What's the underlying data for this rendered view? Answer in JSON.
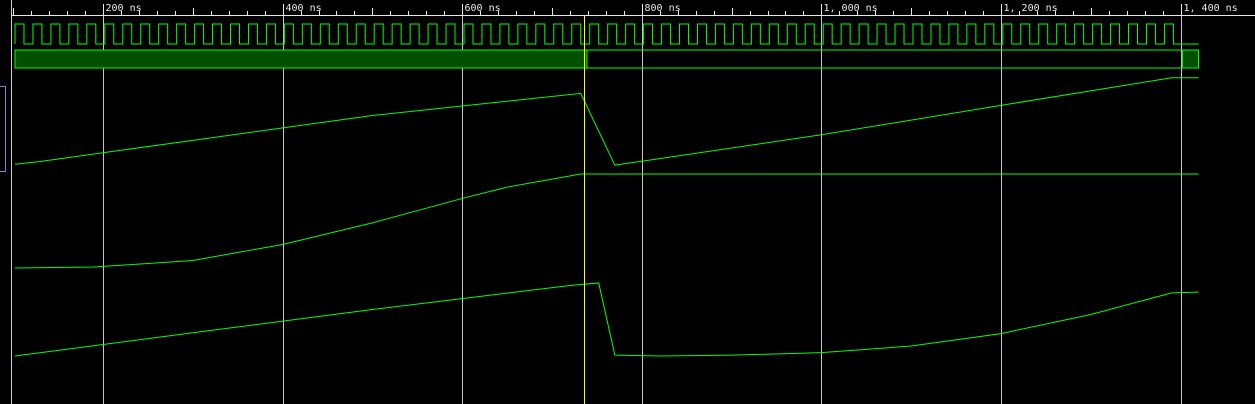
{
  "viewer": {
    "colors": {
      "background": "#000000",
      "grid": "#e8e8e8",
      "ruler_text": "#e8e8e8",
      "trace": "#00ff00",
      "bus_fill": "#005000",
      "cursor": "#ffff00"
    },
    "time_axis": {
      "unit": "ns",
      "start": 100,
      "end": 1410,
      "major_ticks": [
        {
          "value": 200,
          "label": "200 ns"
        },
        {
          "value": 400,
          "label": "400 ns"
        },
        {
          "value": 600,
          "label": "600 ns"
        },
        {
          "value": 800,
          "label": "800 ns"
        },
        {
          "value": 1000,
          "label": "1, 000 ns"
        },
        {
          "value": 1200,
          "label": "1, 200 ns"
        },
        {
          "value": 1400,
          "label": "1, 400 ns"
        }
      ],
      "minor_step": 20
    },
    "cursor_time": 736
  },
  "chart_data": {
    "type": "line",
    "x_unit": "ns",
    "traces": [
      {
        "kind": "clock",
        "period": 20,
        "start": 102,
        "end": 1398,
        "tail_end": 1420
      },
      {
        "kind": "bus",
        "segments": [
          {
            "t0": 102,
            "t1": 739,
            "filled": true
          },
          {
            "t0": 739,
            "t1": 1402,
            "filled": false
          },
          {
            "t0": 1402,
            "t1": 1420,
            "filled": true
          }
        ]
      },
      {
        "kind": "analog",
        "points": [
          [
            102,
            0.03
          ],
          [
            130,
            0.06
          ],
          [
            300,
            0.29
          ],
          [
            500,
            0.56
          ],
          [
            732,
            0.8
          ],
          [
            770,
            0.02
          ],
          [
            1000,
            0.35
          ],
          [
            1200,
            0.67
          ],
          [
            1390,
            0.97
          ],
          [
            1420,
            0.97
          ]
        ]
      },
      {
        "kind": "analog",
        "points": [
          [
            102,
            0.0
          ],
          [
            190,
            0.01
          ],
          [
            300,
            0.08
          ],
          [
            400,
            0.25
          ],
          [
            500,
            0.48
          ],
          [
            600,
            0.74
          ],
          [
            650,
            0.86
          ],
          [
            732,
            1.0
          ],
          [
            1420,
            1.0
          ]
        ]
      },
      {
        "kind": "analog",
        "points": [
          [
            102,
            0.0
          ],
          [
            300,
            0.28
          ],
          [
            500,
            0.56
          ],
          [
            720,
            0.85
          ],
          [
            752,
            0.88
          ],
          [
            770,
            0.01
          ],
          [
            820,
            0.0
          ],
          [
            900,
            0.01
          ],
          [
            1000,
            0.04
          ],
          [
            1100,
            0.12
          ],
          [
            1200,
            0.27
          ],
          [
            1300,
            0.5
          ],
          [
            1390,
            0.76
          ],
          [
            1420,
            0.77
          ]
        ]
      }
    ]
  }
}
